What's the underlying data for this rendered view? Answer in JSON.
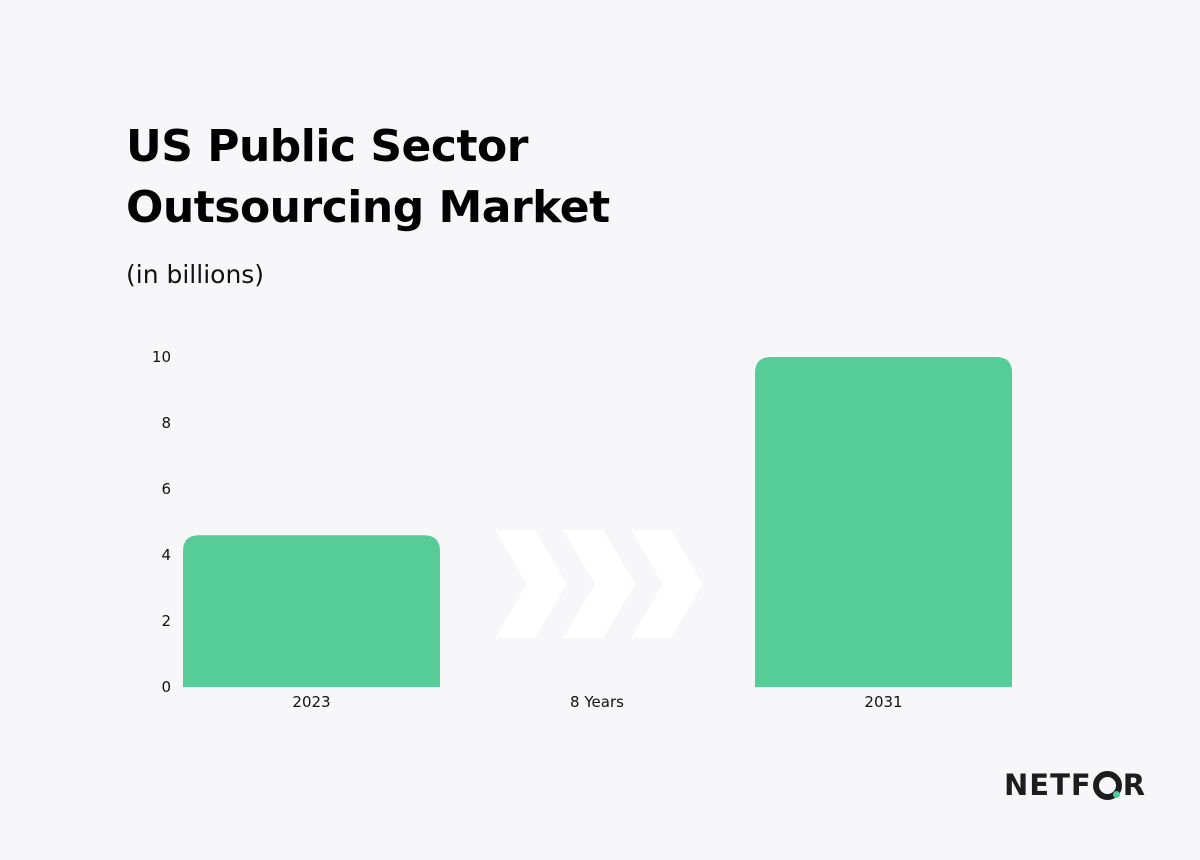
{
  "header": {
    "title": "US Public Sector Outsourcing Market",
    "subtitle": "(in billions)"
  },
  "brand": {
    "logo_text": "NETFOR",
    "logo_prefix": "NETF",
    "logo_suffix": "R",
    "accent_color": "#56cc98"
  },
  "chart_data": {
    "type": "bar",
    "categories": [
      "2023",
      "2031"
    ],
    "values": [
      4.6,
      10.0
    ],
    "bar_color": "#56cc98",
    "ylim": [
      0,
      10
    ],
    "yticks": [
      "0",
      "2",
      "4",
      "6",
      "8",
      "10"
    ],
    "grid": false,
    "annotation": {
      "label": "8 Years",
      "icon": "triple-chevron-right-icon",
      "color": "#ffffff"
    }
  }
}
